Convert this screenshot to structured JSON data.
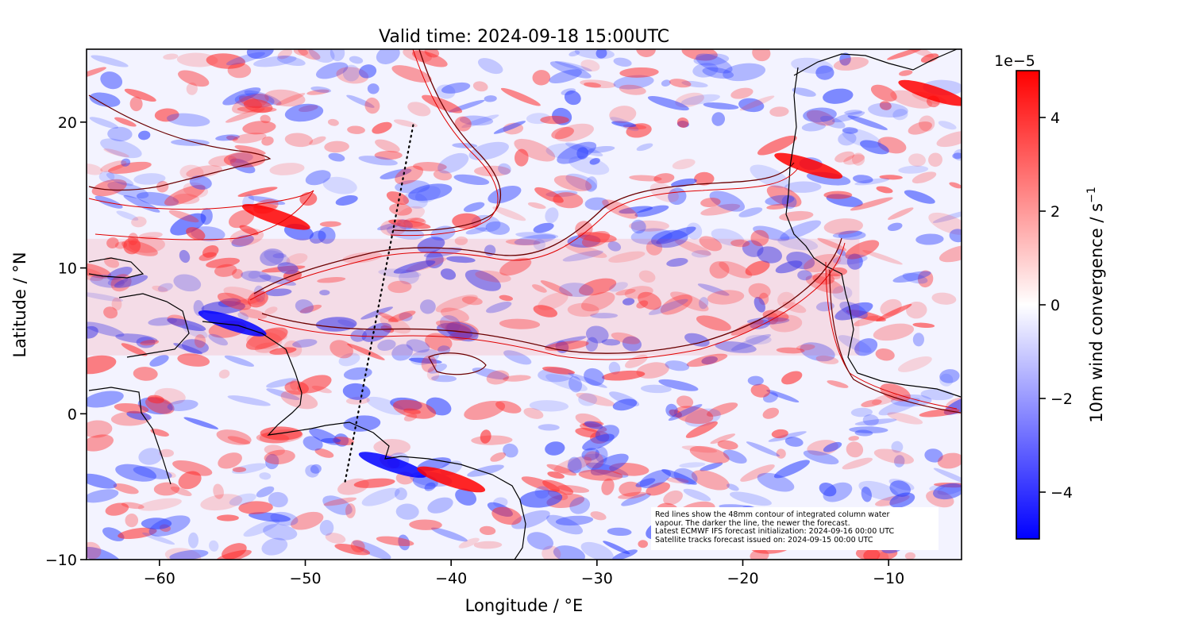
{
  "title": "Valid time: 2024-09-18 15:00UTC",
  "xlabel": "Longitude / °E",
  "ylabel": "Latitude / °N",
  "x_ticks": [
    "−60",
    "−50",
    "−40",
    "−30",
    "−20",
    "−10"
  ],
  "x_tick_values": [
    -60,
    -50,
    -40,
    -30,
    -20,
    -10
  ],
  "y_ticks": [
    "20",
    "10",
    "0",
    "−10"
  ],
  "y_tick_values": [
    20,
    10,
    0,
    -10
  ],
  "extent": {
    "lon_min": -65,
    "lon_max": -5,
    "lat_min": -10,
    "lat_max": 25
  },
  "colorbar": {
    "label": "10m wind convergence / s",
    "label_exponent": "−1",
    "offset_text": "1e−5",
    "ticks": [
      "4",
      "2",
      "0",
      "−2",
      "−4"
    ],
    "tick_values": [
      4,
      2,
      0,
      -2,
      -4
    ],
    "range": [
      -5,
      5
    ],
    "color_low": "#0000ff",
    "color_mid": "#ffffff",
    "color_high": "#ff0000"
  },
  "satellite_track": {
    "start": [
      -42.6,
      19.8
    ],
    "end": [
      -47.3,
      -4.8
    ]
  },
  "note_lines": [
    "Red lines show the 48mm contour of integrated column water",
    "vapour. The darker the line, the newer the forecast.",
    "Latest ECMWF IFS forecast initialization: 2024-09-16 00:00 UTC",
    "Satellite tracks forecast issued on: 2024-09-15 00:00 UTC"
  ],
  "chart_data": {
    "type": "heatmap",
    "title": "Valid time: 2024-09-18 15:00UTC",
    "xlabel": "Longitude / °E",
    "ylabel": "Latitude / °N",
    "xlim": [
      -65,
      -5
    ],
    "ylim": [
      -10,
      25
    ],
    "zlim": [
      -5e-05,
      5e-05
    ],
    "z_label": "10m wind convergence / s^-1",
    "features": {
      "itcz_band": {
        "lat_range": [
          4,
          12
        ],
        "lon_range": [
          -65,
          -12
        ]
      },
      "strong_convergence": [
        {
          "lon": -44,
          "lat": -3.5,
          "sign": "negative"
        },
        {
          "lon": -40,
          "lat": -4.5,
          "sign": "positive"
        },
        {
          "lon": -52,
          "lat": 13.5,
          "sign": "positive"
        },
        {
          "lon": -55,
          "lat": 6.2,
          "sign": "negative"
        },
        {
          "lon": -15.5,
          "lat": 17,
          "sign": "positive"
        },
        {
          "lon": -7,
          "lat": 22,
          "sign": "positive"
        }
      ]
    }
  }
}
